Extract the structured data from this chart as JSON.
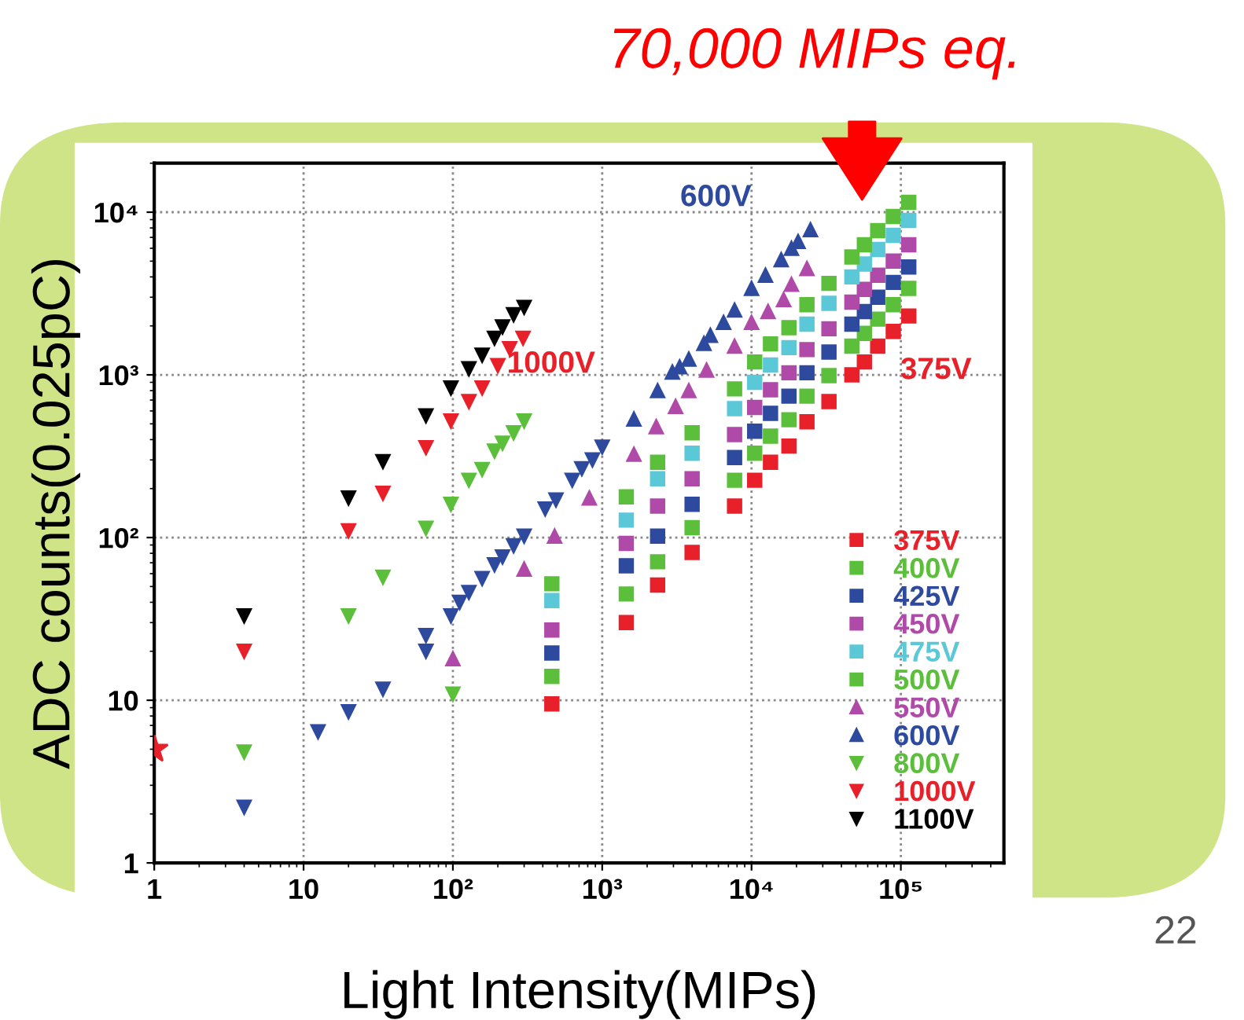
{
  "chart_data": {
    "type": "scatter",
    "xlabel": "Light Intensity(MIPs)",
    "ylabel": "ADC counts(0.025pC)",
    "log": "xy",
    "grid": true,
    "legend": "bottom right",
    "xlim": [
      1,
      490000
    ],
    "ylim": [
      1,
      20000
    ],
    "xticks": [
      1,
      10,
      {
        "value": 100,
        "label": "10²"
      },
      {
        "value": 1000,
        "label": "10³"
      },
      {
        "value": 10000,
        "label": "10⁴"
      },
      {
        "value": 100000,
        "label": "10⁵"
      }
    ],
    "yticks": [
      1,
      10,
      {
        "value": 100,
        "label": "10²"
      },
      {
        "value": 1000,
        "label": "10³"
      },
      {
        "value": 10000,
        "label": "10⁴"
      }
    ],
    "series": [
      {
        "name": "375V",
        "color": "#e8202a",
        "marker": "square",
        "x": [
          460,
          1450,
          2350,
          4000,
          7700,
          10500,
          13400,
          17800,
          23500,
          33000,
          47000,
          57000,
          70000,
          89000,
          113000
        ],
        "values": [
          9.5,
          30,
          51,
          81,
          156,
          225,
          290,
          365,
          515,
          685,
          1000,
          1200,
          1500,
          1850,
          2300
        ]
      },
      {
        "name": "400V",
        "color": "#5cbf3c",
        "marker": "square",
        "x": [
          460,
          1450,
          2350,
          4000,
          7700,
          10500,
          13400,
          17800,
          23500,
          33000,
          47000,
          57000,
          70000,
          89000,
          113000
        ],
        "values": [
          14,
          45,
          71,
          115,
          225,
          330,
          420,
          530,
          740,
          990,
          1500,
          1800,
          2200,
          2700,
          3400
        ]
      },
      {
        "name": "425V",
        "color": "#2e4a9e",
        "marker": "square",
        "x": [
          460,
          1450,
          2350,
          4000,
          7700,
          10500,
          13400,
          17800,
          23500,
          33000,
          47000,
          57000,
          70000,
          89000,
          113000
        ],
        "values": [
          19.5,
          67,
          102,
          160,
          310,
          450,
          580,
          740,
          1030,
          1380,
          2050,
          2450,
          3000,
          3700,
          4600
        ]
      },
      {
        "name": "450V",
        "color": "#b04aa8",
        "marker": "square",
        "x": [
          460,
          1450,
          2350,
          4000,
          7700,
          10500,
          13400,
          17800,
          23500,
          33000,
          47000,
          57000,
          70000,
          89000,
          113000
        ],
        "values": [
          27,
          92,
          156,
          230,
          430,
          630,
          810,
          1030,
          1430,
          1920,
          2800,
          3350,
          4100,
          5000,
          6300
        ]
      },
      {
        "name": "475V",
        "color": "#5bc8d8",
        "marker": "square",
        "x": [
          460,
          1450,
          2350,
          4000,
          7700,
          10500,
          13400,
          17800,
          23500,
          33000,
          47000,
          57000,
          70000,
          89000,
          113000
        ],
        "values": [
          41,
          128,
          230,
          330,
          620,
          900,
          1150,
          1470,
          2050,
          2750,
          4000,
          4800,
          5900,
          7200,
          8900
        ]
      },
      {
        "name": "500V",
        "color": "#5cbf3c",
        "marker": "square",
        "x": [
          460,
          1450,
          2350,
          4000,
          7700,
          10500,
          13400,
          17800,
          23500,
          33000,
          47000,
          57000,
          70000,
          89000,
          113000
        ],
        "values": [
          52,
          178,
          290,
          440,
          820,
          1200,
          1550,
          1950,
          2700,
          3650,
          5300,
          6300,
          7700,
          9400,
          11500
        ]
      },
      {
        "name": "550V",
        "color": "#b04aa8",
        "marker": "triangle",
        "x": [
          100,
          300,
          480,
          820,
          1630,
          2300,
          3100,
          3800,
          5000,
          7700,
          10000,
          12900,
          16400,
          18500,
          23500
        ],
        "values": [
          18,
          64,
          102,
          175,
          325,
          480,
          640,
          800,
          1070,
          1500,
          2100,
          2450,
          2900,
          3600,
          4500
        ]
      },
      {
        "name": "600V",
        "color": "#2e4a9e",
        "marker": "triangle",
        "x": [
          1630,
          2350,
          2950,
          3300,
          3800,
          4800,
          5300,
          6500,
          7700,
          10000,
          12400,
          15800,
          18500,
          20500,
          24800
        ],
        "values": [
          535,
          800,
          1040,
          1120,
          1250,
          1560,
          1750,
          2100,
          2500,
          3400,
          4100,
          5100,
          6000,
          6600,
          7800
        ]
      },
      {
        "name": "800V",
        "color": "#5cbf3c",
        "marker": "triangle_down",
        "x": [
          4,
          20,
          34,
          66,
          97,
          100,
          128,
          157,
          190,
          215,
          255,
          300
        ],
        "values": [
          4.8,
          33,
          57,
          114,
          160,
          10.9,
          225,
          262,
          340,
          380,
          440,
          520
        ]
      },
      {
        "name": "1000V",
        "color": "#e8202a",
        "marker": "triangle_down",
        "x": [
          4,
          20,
          34,
          66,
          97,
          128,
          157,
          200,
          240,
          295
        ],
        "values": [
          20,
          110,
          187,
          357,
          520,
          685,
          830,
          1140,
          1450,
          1680
        ]
      },
      {
        "name": "1100V",
        "color": "#000000",
        "marker": "triangle_down",
        "x": [
          4,
          20,
          34,
          66,
          97,
          128,
          157,
          190,
          215,
          255,
          300
        ],
        "values": [
          33,
          175,
          293,
          560,
          830,
          1090,
          1320,
          1680,
          1970,
          2340,
          2600
        ]
      },
      {
        "color": "#2e4a9e",
        "marker": "triangle_down",
        "x": [
          4,
          12.5,
          20,
          34,
          66,
          66,
          97,
          111,
          128,
          157,
          190,
          215,
          255,
          300,
          415,
          490,
          630,
          730,
          860,
          1000
        ],
        "values": [
          2.2,
          6.4,
          8.5,
          11.7,
          20,
          25,
          33,
          40,
          46,
          56,
          68,
          76,
          89,
          102,
          150,
          170,
          225,
          265,
          300,
          360
        ]
      },
      {
        "color": "#e8202a",
        "marker": "star",
        "x": [
          1
        ],
        "values": [
          5
        ]
      }
    ],
    "annotations": [
      "600V",
      "1000V",
      "375V",
      "70,000 MIPs eq.",
      "22"
    ]
  }
}
